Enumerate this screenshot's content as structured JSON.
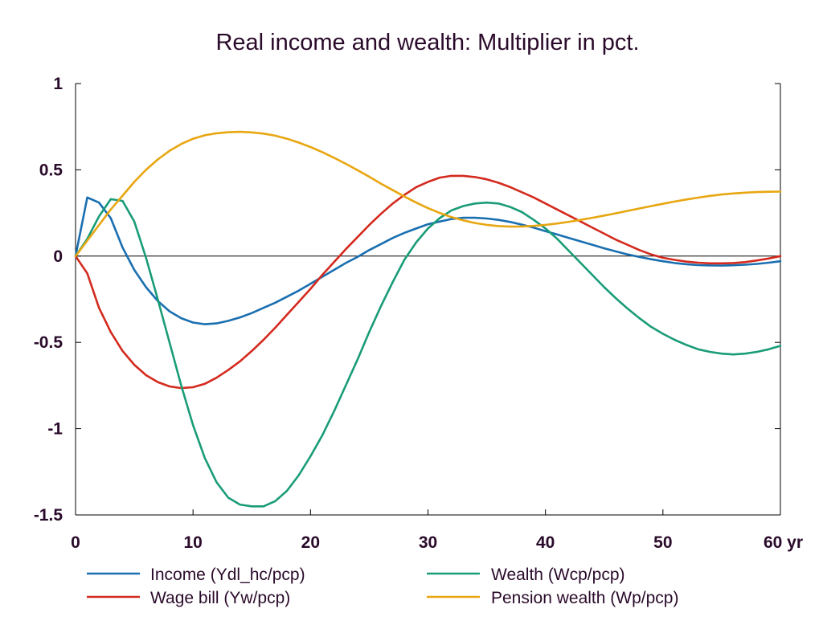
{
  "chart_data": {
    "type": "line",
    "title": "Real income and wealth: Multiplier in pct.",
    "xlabel": "",
    "ylabel": "",
    "x_unit_label": "yr",
    "xlim": [
      0,
      60
    ],
    "ylim": [
      -1.5,
      1
    ],
    "x_ticks": [
      0,
      10,
      20,
      30,
      40,
      50,
      60
    ],
    "x_tick_labels": [
      "0",
      "10",
      "20",
      "30",
      "40",
      "50",
      "60 yr"
    ],
    "y_ticks": [
      1,
      0.5,
      0,
      -0.5,
      -1,
      -1.5
    ],
    "y_tick_labels": [
      "1",
      "0.5",
      "0",
      "-0.5",
      "-1",
      "-1.5"
    ],
    "zero_line": true,
    "grid": false,
    "legend_position": "bottom",
    "x": [
      0,
      1,
      2,
      3,
      4,
      5,
      6,
      7,
      8,
      9,
      10,
      11,
      12,
      13,
      14,
      15,
      16,
      17,
      18,
      19,
      20,
      21,
      22,
      23,
      24,
      25,
      26,
      27,
      28,
      29,
      30,
      31,
      32,
      33,
      34,
      35,
      36,
      37,
      38,
      39,
      40,
      41,
      42,
      43,
      44,
      45,
      46,
      47,
      48,
      49,
      50,
      51,
      52,
      53,
      54,
      55,
      56,
      57,
      58,
      59,
      60
    ],
    "series": [
      {
        "name": "Income (Ydl_hc/pcp)",
        "color": "#1a6fb0",
        "values": [
          0.0,
          0.34,
          0.31,
          0.22,
          0.05,
          -0.08,
          -0.18,
          -0.26,
          -0.32,
          -0.36,
          -0.385,
          -0.395,
          -0.39,
          -0.375,
          -0.355,
          -0.33,
          -0.3,
          -0.27,
          -0.235,
          -0.2,
          -0.16,
          -0.12,
          -0.08,
          -0.04,
          -0.005,
          0.035,
          0.07,
          0.105,
          0.135,
          0.16,
          0.185,
          0.2,
          0.215,
          0.222,
          0.222,
          0.218,
          0.21,
          0.198,
          0.182,
          0.165,
          0.145,
          0.125,
          0.105,
          0.085,
          0.065,
          0.045,
          0.027,
          0.01,
          -0.005,
          -0.018,
          -0.03,
          -0.04,
          -0.047,
          -0.052,
          -0.054,
          -0.055,
          -0.053,
          -0.05,
          -0.045,
          -0.038,
          -0.03
        ]
      },
      {
        "name": "Wage bill (Yw/pcp)",
        "color": "#d42a1e",
        "values": [
          0.0,
          -0.1,
          -0.3,
          -0.44,
          -0.55,
          -0.63,
          -0.69,
          -0.73,
          -0.755,
          -0.765,
          -0.76,
          -0.74,
          -0.705,
          -0.66,
          -0.61,
          -0.55,
          -0.485,
          -0.415,
          -0.34,
          -0.265,
          -0.19,
          -0.11,
          -0.035,
          0.04,
          0.11,
          0.18,
          0.245,
          0.305,
          0.355,
          0.4,
          0.43,
          0.455,
          0.465,
          0.465,
          0.458,
          0.445,
          0.425,
          0.4,
          0.37,
          0.34,
          0.305,
          0.27,
          0.235,
          0.2,
          0.165,
          0.13,
          0.095,
          0.065,
          0.035,
          0.01,
          -0.01,
          -0.022,
          -0.032,
          -0.038,
          -0.042,
          -0.042,
          -0.04,
          -0.035,
          -0.025,
          -0.014,
          0.0
        ]
      },
      {
        "name": "Wealth (Wcp/pcp)",
        "color": "#1a9c78",
        "values": [
          0.0,
          0.1,
          0.23,
          0.33,
          0.32,
          0.2,
          -0.01,
          -0.25,
          -0.5,
          -0.75,
          -0.98,
          -1.17,
          -1.31,
          -1.4,
          -1.44,
          -1.45,
          -1.45,
          -1.42,
          -1.36,
          -1.27,
          -1.16,
          -1.04,
          -0.9,
          -0.75,
          -0.6,
          -0.44,
          -0.29,
          -0.15,
          -0.02,
          0.08,
          0.16,
          0.22,
          0.265,
          0.29,
          0.305,
          0.31,
          0.305,
          0.285,
          0.255,
          0.21,
          0.16,
          0.1,
          0.03,
          -0.04,
          -0.11,
          -0.18,
          -0.245,
          -0.305,
          -0.36,
          -0.41,
          -0.45,
          -0.485,
          -0.515,
          -0.54,
          -0.555,
          -0.565,
          -0.57,
          -0.565,
          -0.555,
          -0.54,
          -0.52
        ]
      },
      {
        "name": "Pension wealth (Wp/pcp)",
        "color": "#e8a611",
        "values": [
          0.0,
          0.09,
          0.18,
          0.27,
          0.35,
          0.43,
          0.5,
          0.56,
          0.61,
          0.65,
          0.68,
          0.7,
          0.712,
          0.718,
          0.72,
          0.717,
          0.71,
          0.698,
          0.68,
          0.658,
          0.632,
          0.603,
          0.57,
          0.535,
          0.498,
          0.46,
          0.42,
          0.382,
          0.345,
          0.31,
          0.278,
          0.25,
          0.226,
          0.207,
          0.192,
          0.181,
          0.174,
          0.171,
          0.172,
          0.175,
          0.181,
          0.189,
          0.199,
          0.21,
          0.222,
          0.235,
          0.248,
          0.262,
          0.276,
          0.29,
          0.303,
          0.316,
          0.328,
          0.339,
          0.349,
          0.357,
          0.363,
          0.368,
          0.371,
          0.373,
          0.374
        ]
      }
    ]
  }
}
